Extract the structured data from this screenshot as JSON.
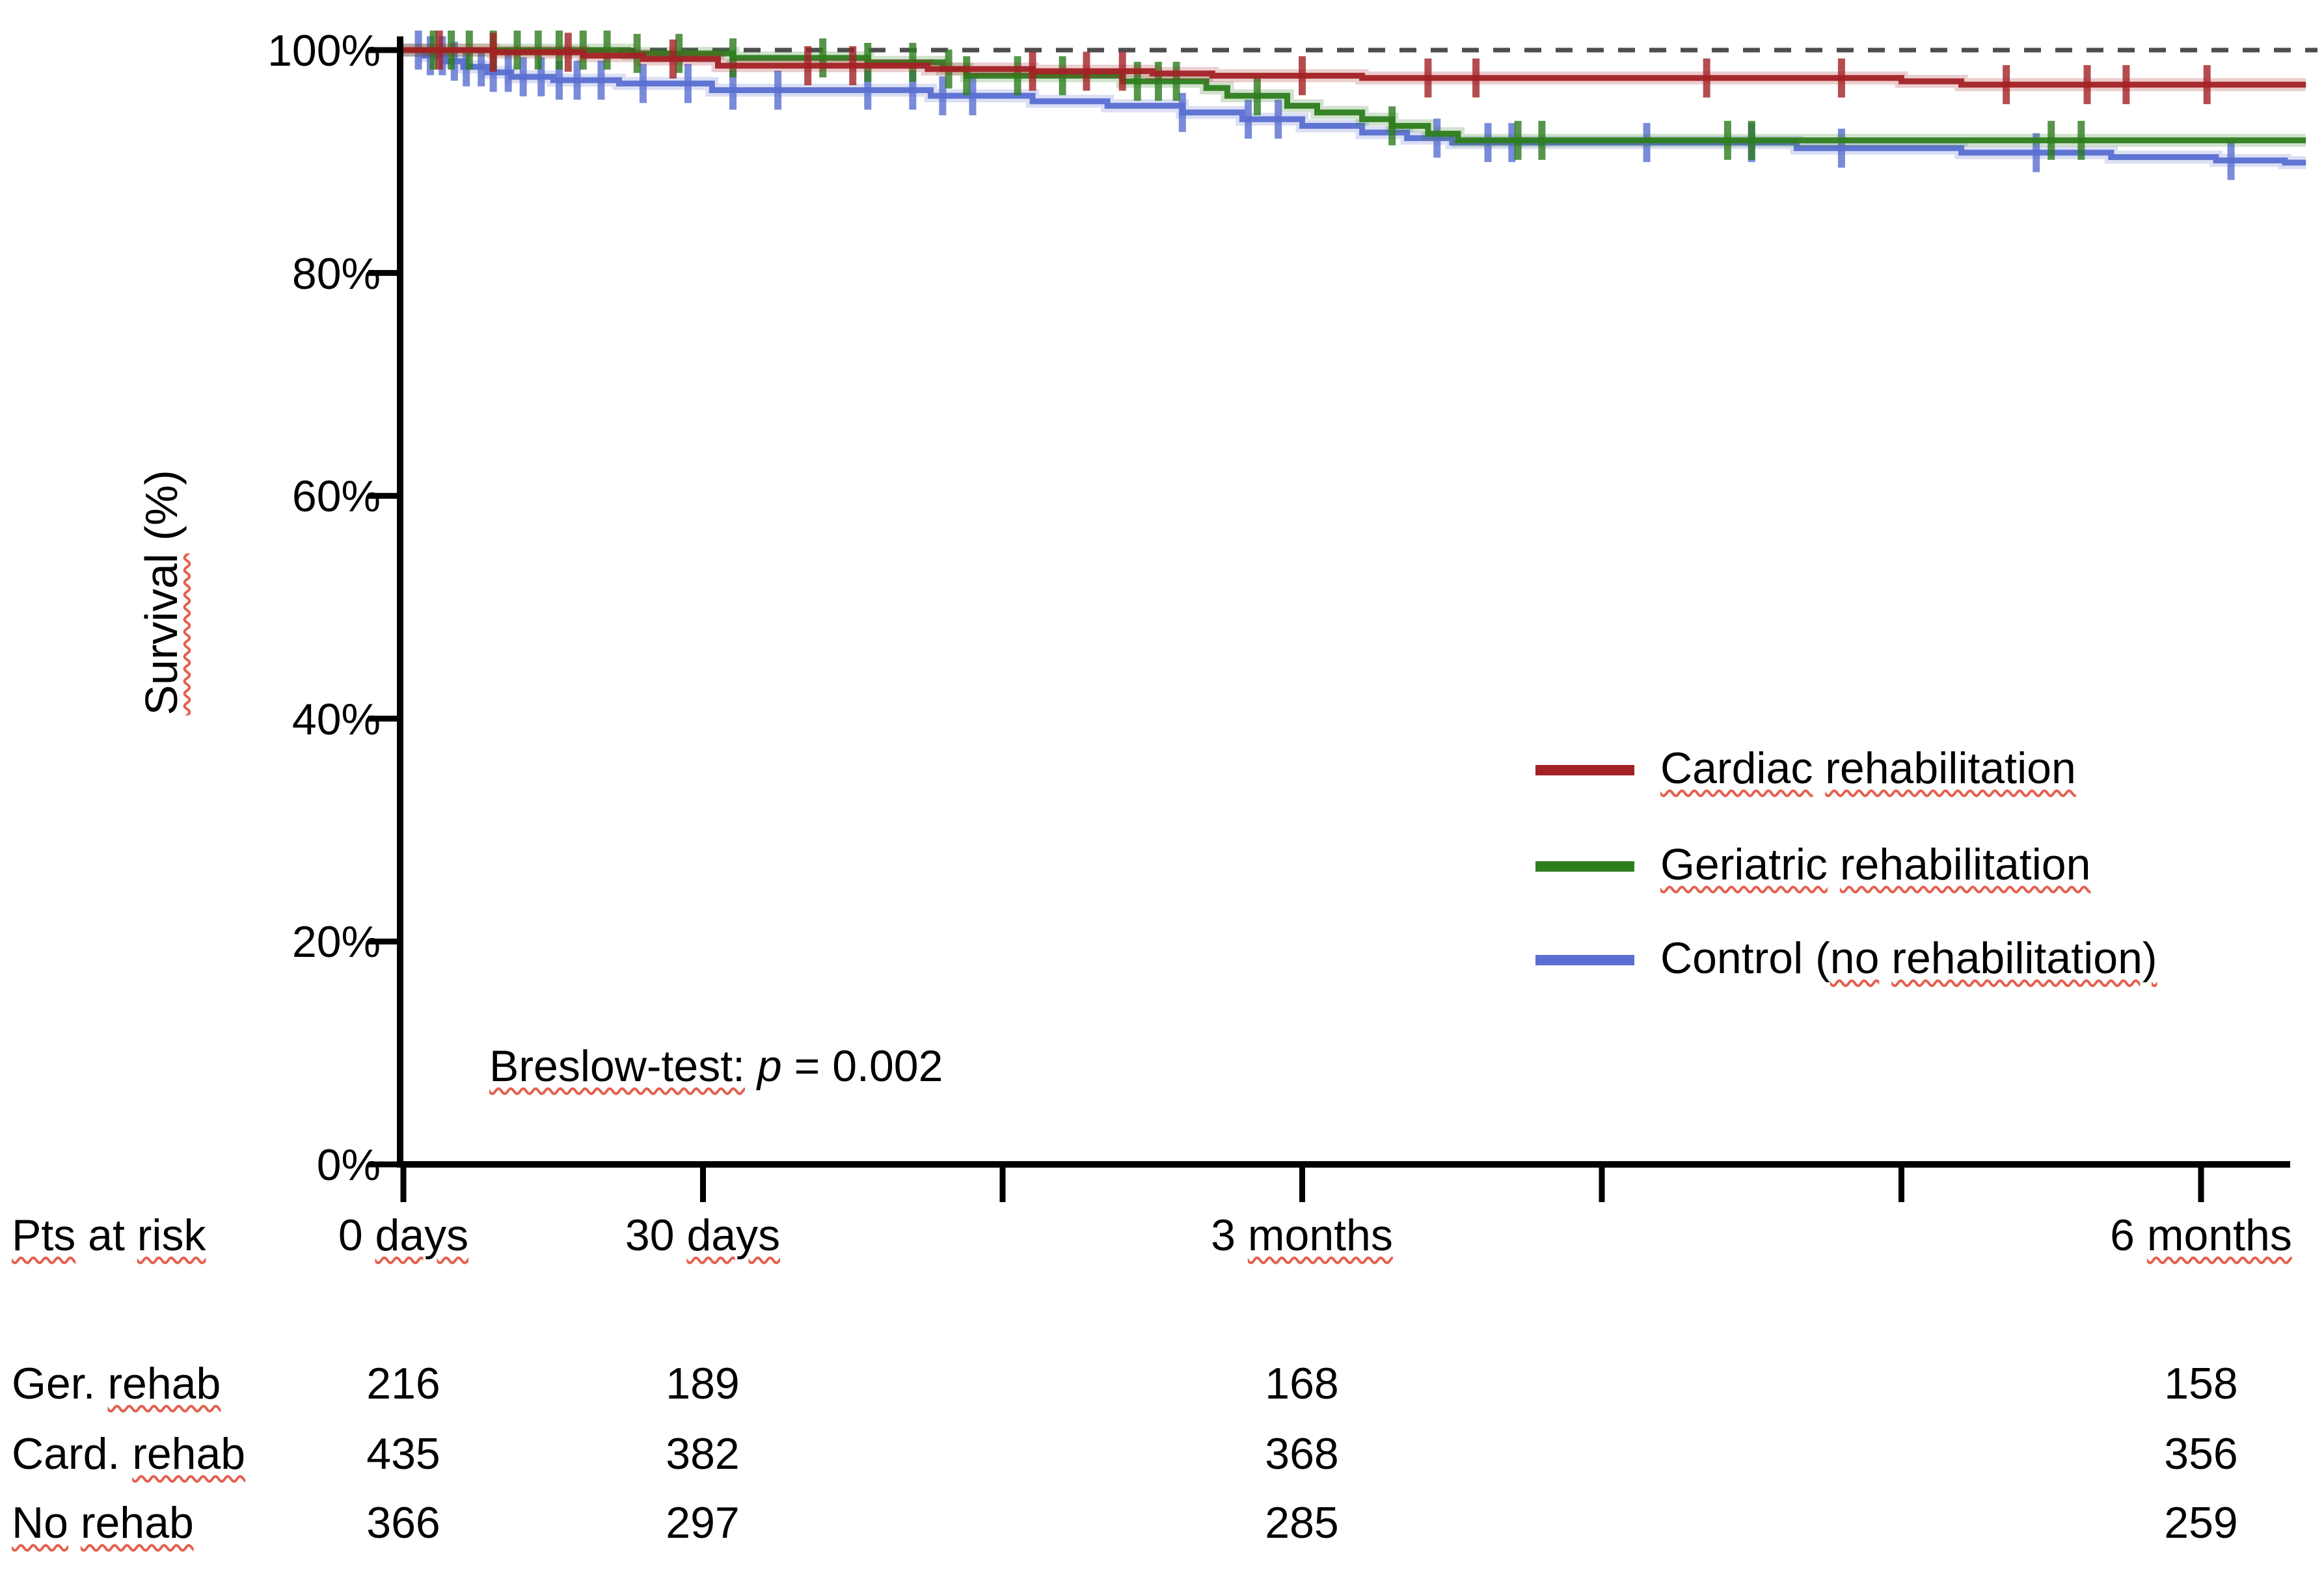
{
  "chart_data": {
    "type": "line",
    "subtype": "kaplan_meier_step_plot",
    "ylabel_parts": [
      {
        "t": "Survival",
        "sq": true
      },
      {
        "t": " (%)"
      }
    ],
    "y_axis": {
      "tick_labels": [
        "100%",
        "80%",
        "60%",
        "40%",
        "20%",
        "0%"
      ],
      "tick_values": [
        100,
        80,
        60,
        40,
        20,
        0
      ],
      "ylim": [
        0,
        100
      ]
    },
    "x_axis": {
      "tick_months": [
        0,
        1,
        2,
        3,
        4,
        5,
        6
      ],
      "xlim_months": [
        0,
        6.4
      ],
      "labels": [
        {
          "month": 0,
          "parts": [
            {
              "t": "0 "
            },
            {
              "t": "days",
              "sq": true
            }
          ]
        },
        {
          "month": 1,
          "parts": [
            {
              "t": "30 "
            },
            {
              "t": "days",
              "sq": true
            }
          ]
        },
        {
          "month": 3,
          "parts": [
            {
              "t": "3 "
            },
            {
              "t": "months",
              "sq": true
            }
          ]
        },
        {
          "month": 6,
          "parts": [
            {
              "t": "6 "
            },
            {
              "t": "months",
              "sq": true
            }
          ]
        }
      ]
    },
    "reference_line": {
      "pct": 100,
      "style": "dashed",
      "color": "#4d4d4d"
    },
    "annotation_parts": [
      {
        "t": "Breslow-test:",
        "sq": true
      },
      {
        "t": " "
      },
      {
        "t": "p",
        "i": true
      },
      {
        "t": " = 0.002"
      }
    ],
    "legend_position": "middle-right",
    "series": [
      {
        "name": "Cardiac rehabilitation",
        "color": "#a32125",
        "legend_parts": [
          {
            "t": "Cardiac",
            "sq": true
          },
          {
            "t": " "
          },
          {
            "t": "rehabilitation",
            "sq": true
          }
        ],
        "steps": [
          [
            0,
            100
          ],
          [
            0.3,
            99.8
          ],
          [
            0.6,
            99.5
          ],
          [
            0.8,
            99.2
          ],
          [
            1.05,
            98.6
          ],
          [
            1.75,
            98.3
          ],
          [
            2.1,
            98.1
          ],
          [
            2.5,
            97.9
          ],
          [
            2.7,
            97.7
          ],
          [
            3.2,
            97.5
          ],
          [
            5.0,
            97.2
          ],
          [
            5.2,
            96.9
          ]
        ],
        "censor_months": [
          0.12,
          0.3,
          0.55,
          0.9,
          1.35,
          1.5,
          2.1,
          2.28,
          2.4,
          3.0,
          3.42,
          3.58,
          4.35,
          4.8,
          5.35,
          5.62,
          5.75,
          6.02
        ]
      },
      {
        "name": "Geriatric rehabilitation",
        "color": "#2e7d1e",
        "legend_parts": [
          {
            "t": "Geriatric",
            "sq": true
          },
          {
            "t": " "
          },
          {
            "t": "rehabilitation",
            "sq": true
          }
        ],
        "steps": [
          [
            0,
            100
          ],
          [
            0.75,
            99.7
          ],
          [
            1.1,
            99.3
          ],
          [
            1.55,
            98.9
          ],
          [
            1.8,
            98.3
          ],
          [
            1.88,
            97.7
          ],
          [
            2.4,
            97.2
          ],
          [
            2.68,
            96.6
          ],
          [
            2.75,
            95.9
          ],
          [
            2.95,
            95.0
          ],
          [
            3.05,
            94.4
          ],
          [
            3.2,
            93.8
          ],
          [
            3.3,
            93.2
          ],
          [
            3.42,
            92.5
          ],
          [
            3.52,
            91.9
          ]
        ],
        "censor_months": [
          0.1,
          0.16,
          0.22,
          0.3,
          0.38,
          0.45,
          0.52,
          0.6,
          0.68,
          0.78,
          0.92,
          1.1,
          1.4,
          1.55,
          1.7,
          1.82,
          1.88,
          2.05,
          2.2,
          2.45,
          2.52,
          2.58,
          2.85,
          3.3,
          3.72,
          3.8,
          4.42,
          4.5,
          5.5,
          5.6
        ]
      },
      {
        "name": "Control (no rehabilitation)",
        "color": "#5a6fd1",
        "legend_parts": [
          {
            "t": "Control ("
          },
          {
            "t": "no",
            "sq": true
          },
          {
            "t": " "
          },
          {
            "t": "rehabilitation)",
            "sq": true
          }
        ],
        "steps": [
          [
            0,
            100
          ],
          [
            0.07,
            99.5
          ],
          [
            0.14,
            99.0
          ],
          [
            0.2,
            98.5
          ],
          [
            0.28,
            98.0
          ],
          [
            0.36,
            97.6
          ],
          [
            0.5,
            97.3
          ],
          [
            0.72,
            97.0
          ],
          [
            1.03,
            96.4
          ],
          [
            1.76,
            95.9
          ],
          [
            2.1,
            95.4
          ],
          [
            2.35,
            95.0
          ],
          [
            2.6,
            94.4
          ],
          [
            2.8,
            93.8
          ],
          [
            3.0,
            93.2
          ],
          [
            3.2,
            92.6
          ],
          [
            3.35,
            92.1
          ],
          [
            3.5,
            91.7
          ],
          [
            4.65,
            91.2
          ],
          [
            5.2,
            90.8
          ],
          [
            5.7,
            90.4
          ],
          [
            6.05,
            90.1
          ],
          [
            6.28,
            89.9
          ]
        ],
        "censor_months": [
          0.05,
          0.09,
          0.13,
          0.17,
          0.21,
          0.26,
          0.3,
          0.35,
          0.4,
          0.46,
          0.52,
          0.58,
          0.66,
          0.8,
          0.95,
          1.1,
          1.25,
          1.55,
          1.7,
          1.8,
          1.9,
          2.6,
          2.82,
          2.92,
          3.45,
          3.62,
          3.7,
          4.15,
          4.5,
          4.8,
          5.45,
          6.1
        ]
      }
    ],
    "risk_table": {
      "header_parts": [
        {
          "t": "Pts",
          "sq": true
        },
        {
          "t": " at "
        },
        {
          "t": "risk",
          "sq": true
        }
      ],
      "columns": [
        "0 days",
        "30 days",
        "3 months",
        "6 months"
      ],
      "rows": [
        {
          "label": "Ger. rehab",
          "label_parts": [
            {
              "t": "Ger. "
            },
            {
              "t": "rehab",
              "sq": true
            }
          ],
          "values": [
            216,
            189,
            168,
            158
          ]
        },
        {
          "label": "Card. rehab",
          "label_parts": [
            {
              "t": "Card. "
            },
            {
              "t": "rehab",
              "sq": true
            }
          ],
          "values": [
            435,
            382,
            368,
            356
          ]
        },
        {
          "label": "No rehab",
          "label_parts": [
            {
              "t": "No",
              "sq": true
            },
            {
              "t": " "
            },
            {
              "t": "rehab",
              "sq": true
            }
          ],
          "values": [
            366,
            297,
            285,
            259
          ]
        }
      ]
    }
  }
}
